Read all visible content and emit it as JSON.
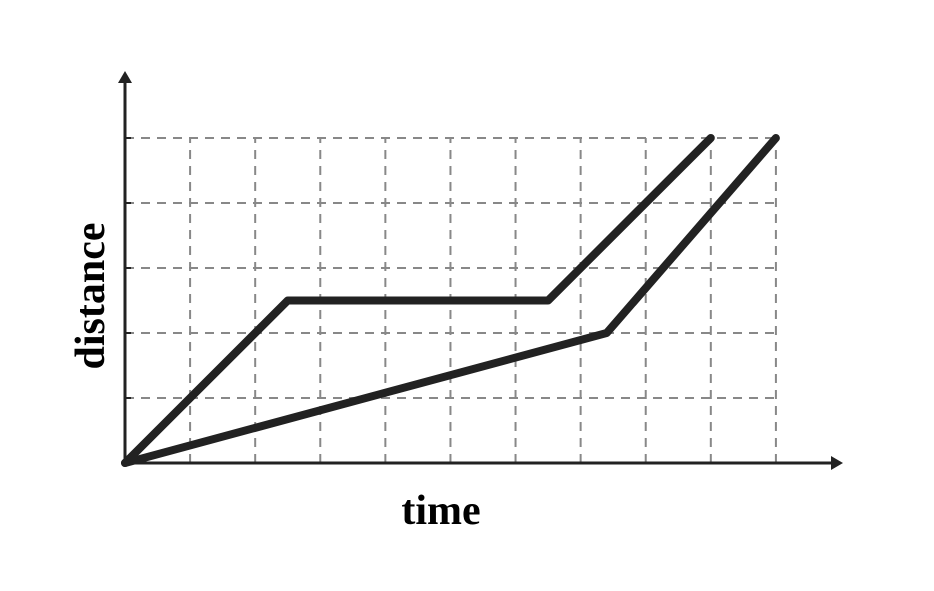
{
  "chart_data": {
    "type": "line",
    "xlabel": "time",
    "ylabel": "distance",
    "xlim": [
      0,
      11
    ],
    "ylim": [
      0,
      6
    ],
    "xticks": [
      1,
      2,
      3,
      4,
      5,
      6,
      7,
      8,
      9,
      10
    ],
    "yticks": [
      1,
      2,
      3,
      4,
      5
    ],
    "grid": true,
    "series": [
      {
        "color": "#222222",
        "x": [
          0,
          2.5,
          6.5,
          9
        ],
        "values": [
          0,
          2.5,
          2.5,
          5
        ]
      },
      {
        "color": "#222222",
        "x": [
          0,
          7.4,
          10
        ],
        "values": [
          0,
          2,
          5
        ]
      }
    ]
  }
}
